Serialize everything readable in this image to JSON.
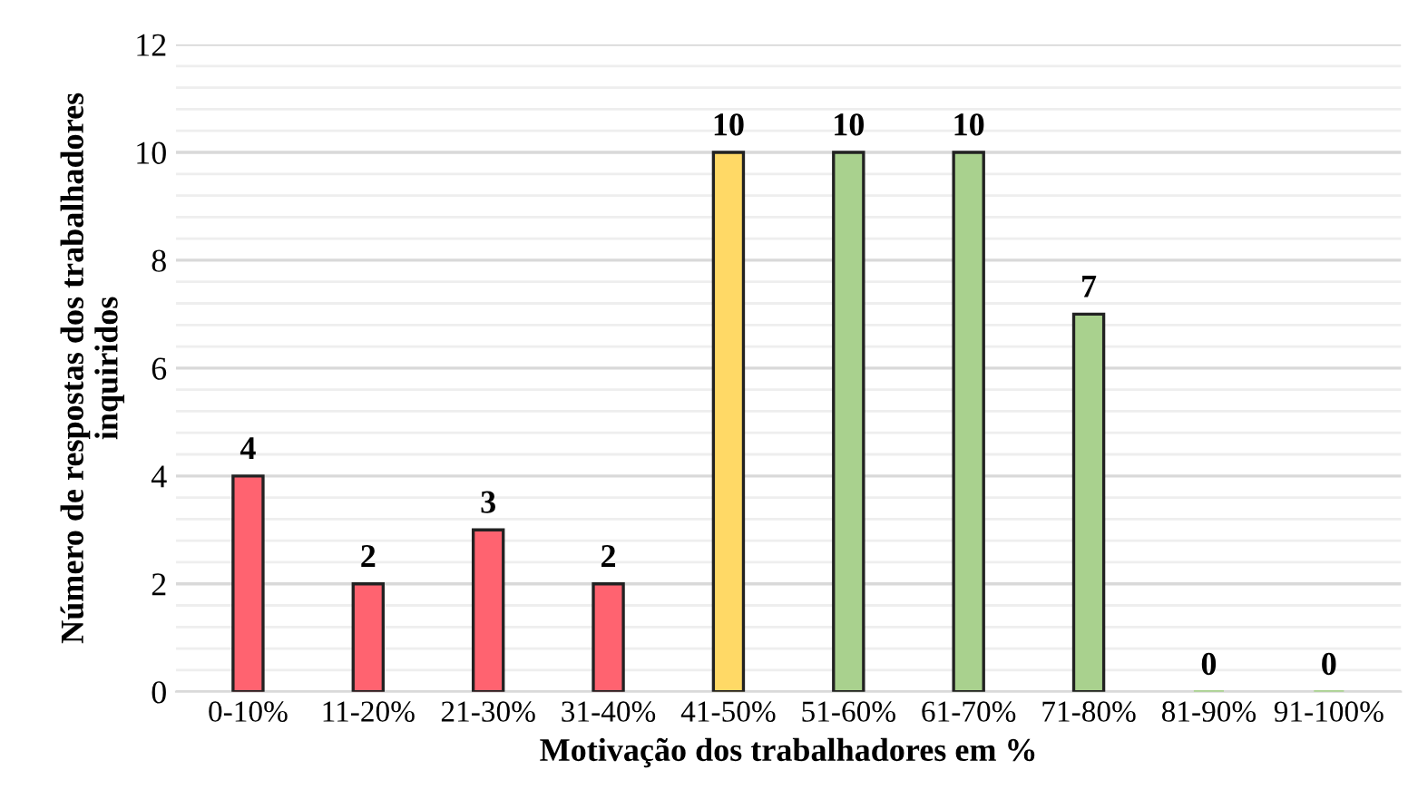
{
  "chart_data": {
    "type": "bar",
    "xlabel": "Motivação dos trabalhadores em %",
    "ylabel": "Número de respostas dos trabalhadores\ninquiridos",
    "categories": [
      "0-10%",
      "11-20%",
      "21-30%",
      "31-40%",
      "41-50%",
      "51-60%",
      "61-70%",
      "71-80%",
      "81-90%",
      "91-100%"
    ],
    "values": [
      4,
      2,
      3,
      2,
      10,
      10,
      10,
      7,
      0,
      0
    ],
    "colors": [
      "#ff6370",
      "#ff6370",
      "#ff6370",
      "#ff6370",
      "#ffd966",
      "#a9d18e",
      "#a9d18e",
      "#a9d18e",
      "#a9d18e",
      "#a9d18e"
    ],
    "ylim": [
      0,
      12
    ],
    "yticks": [
      0,
      2,
      4,
      6,
      8,
      10,
      12
    ],
    "grid": "y",
    "data_labels": true
  }
}
